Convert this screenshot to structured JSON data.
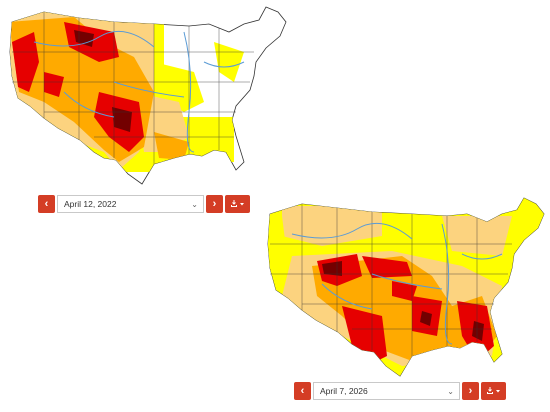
{
  "maps": [
    {
      "date_picker": {
        "selected_date": "April 12, 2022",
        "prev_icon": "chevron-left-icon",
        "next_icon": "chevron-right-icon",
        "download_icon": "download-icon"
      }
    },
    {
      "date_picker": {
        "selected_date": "April 7, 2026",
        "prev_icon": "chevron-left-icon",
        "next_icon": "chevron-right-icon",
        "download_icon": "download-icon"
      }
    }
  ],
  "colors": {
    "abnormally_dry": "#ffff00",
    "moderate": "#fcd37f",
    "severe": "#ffaa00",
    "extreme": "#e60000",
    "exceptional": "#730000",
    "rivers": "#5b9bd5",
    "button": "#d43d25"
  }
}
